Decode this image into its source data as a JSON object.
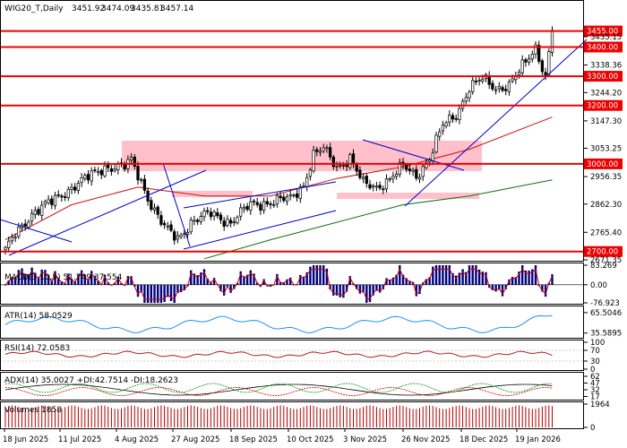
{
  "chart_data": [
    {
      "type": "candlestick",
      "panel": "price",
      "title": "WIG20_T,Daily",
      "header_values": [
        "3451.92",
        "3474.09",
        "3435.81",
        "3457.14"
      ],
      "ylim": [
        2671.35,
        3515.0
      ],
      "y_ticks": [
        {
          "value": 3435.15,
          "label": "3435.15"
        },
        {
          "value": 3338.36,
          "label": "3338.36"
        },
        {
          "value": 3244.2,
          "label": "3244.20"
        },
        {
          "value": 3147.3,
          "label": "3147.30"
        },
        {
          "value": 3053.25,
          "label": "3053.25"
        },
        {
          "value": 2956.35,
          "label": "2956.35"
        },
        {
          "value": 2862.3,
          "label": "2862.30"
        },
        {
          "value": 2765.4,
          "label": "2765.40"
        },
        {
          "value": 2671.35,
          "label": "2671.35"
        }
      ],
      "levels": [
        {
          "value": 3455.0,
          "label": "3455.00"
        },
        {
          "value": 3400.0,
          "label": "3400.00"
        },
        {
          "value": 3300.0,
          "label": "3300.00"
        },
        {
          "value": 3200.0,
          "label": "3200.00"
        },
        {
          "value": 3000.0,
          "label": "3000.00"
        },
        {
          "value": 2700.0,
          "label": "2700.00"
        }
      ],
      "x_tick_labels": [
        "18 Jun 2025",
        "11 Jul 2025",
        "4 Aug 2025",
        "27 Aug 2025",
        "18 Sep 2025",
        "10 Oct 2025",
        "3 Nov 2025",
        "26 Nov 2025",
        "18 Dec 2025",
        "19 Jan 2026"
      ],
      "anchors": [
        [
          0,
          2700
        ],
        [
          3,
          2760
        ],
        [
          8,
          2830
        ],
        [
          14,
          2870
        ],
        [
          20,
          2920
        ],
        [
          26,
          2960
        ],
        [
          30,
          2990
        ],
        [
          36,
          2990
        ],
        [
          38,
          3010
        ],
        [
          41,
          2940
        ],
        [
          44,
          2860
        ],
        [
          48,
          2780
        ],
        [
          52,
          2745
        ],
        [
          56,
          2800
        ],
        [
          62,
          2830
        ],
        [
          68,
          2800
        ],
        [
          74,
          2860
        ],
        [
          80,
          2870
        ],
        [
          86,
          2880
        ],
        [
          90,
          2930
        ],
        [
          93,
          3030
        ],
        [
          96,
          3050
        ],
        [
          100,
          2990
        ],
        [
          104,
          3020
        ],
        [
          108,
          2930
        ],
        [
          112,
          2920
        ],
        [
          116,
          2950
        ],
        [
          120,
          2990
        ],
        [
          124,
          2960
        ],
        [
          128,
          3020
        ],
        [
          132,
          3130
        ],
        [
          136,
          3170
        ],
        [
          140,
          3260
        ],
        [
          144,
          3290
        ],
        [
          148,
          3260
        ],
        [
          152,
          3270
        ],
        [
          156,
          3330
        ],
        [
          160,
          3400
        ],
        [
          163,
          3300
        ],
        [
          165,
          3457.14
        ]
      ],
      "ma_red": [
        [
          0,
          2740
        ],
        [
          20,
          2860
        ],
        [
          40,
          2920
        ],
        [
          60,
          2890
        ],
        [
          80,
          2890
        ],
        [
          100,
          2950
        ],
        [
          120,
          2990
        ],
        [
          140,
          3050
        ],
        [
          165,
          3160
        ]
      ],
      "ma_green": [
        [
          60,
          2675
        ],
        [
          80,
          2740
        ],
        [
          100,
          2800
        ],
        [
          120,
          2860
        ],
        [
          140,
          2890
        ],
        [
          165,
          2945
        ]
      ]
    },
    {
      "type": "bar",
      "panel": "macd",
      "title": "MACD(3,10,5) 51.749 37.554",
      "y_ticks": [
        {
          "value": 83.269,
          "label": "83.269"
        },
        {
          "value": 0,
          "label": "0.00"
        },
        {
          "value": -76.923,
          "label": "-76.923"
        }
      ],
      "ylim": [
        -76.923,
        83.269
      ]
    },
    {
      "type": "line",
      "panel": "atr",
      "title": "ATR(14) 58.0529",
      "y_ticks": [
        {
          "value": 65.5046,
          "label": "65.5046"
        },
        {
          "value": 35.5895,
          "label": "35.5895"
        }
      ],
      "ylim": [
        30,
        72
      ]
    },
    {
      "type": "line",
      "panel": "rsi",
      "title": "RSI(14) 72.0583",
      "y_ticks": [
        {
          "value": 100,
          "label": "100"
        },
        {
          "value": 70,
          "label": "70"
        },
        {
          "value": 30,
          "label": "30"
        },
        {
          "value": 0,
          "label": "0"
        }
      ],
      "ylim": [
        0,
        100
      ]
    },
    {
      "type": "line",
      "panel": "adx",
      "title": "ADX(14) 35.0027 +DI:42.7514 -DI:18.2623",
      "y_ticks": [
        {
          "value": 62,
          "label": "62"
        },
        {
          "value": 47,
          "label": "47"
        },
        {
          "value": 32,
          "label": "32"
        },
        {
          "value": 17,
          "label": "17"
        }
      ],
      "ylim": [
        12,
        66
      ]
    },
    {
      "type": "bar",
      "panel": "volume",
      "title": "Volumes 1858",
      "y_ticks": [
        {
          "value": 1964,
          "label": "1964"
        },
        {
          "value": 0,
          "label": "0"
        }
      ],
      "ylim": [
        0,
        1964
      ]
    }
  ],
  "colors": {
    "up_candle": "#ffffff",
    "down_candle": "#000000",
    "level": "#ee0000",
    "ma_red": "#d01010",
    "ma_green": "#107010",
    "trendline": "#0000cc",
    "zone": "#ffc0cb",
    "macd_hist": "#000080",
    "macd_signal": "#cc0000",
    "atr": "#1e90ff",
    "rsi": "#b22222",
    "volume": "#b00000"
  }
}
